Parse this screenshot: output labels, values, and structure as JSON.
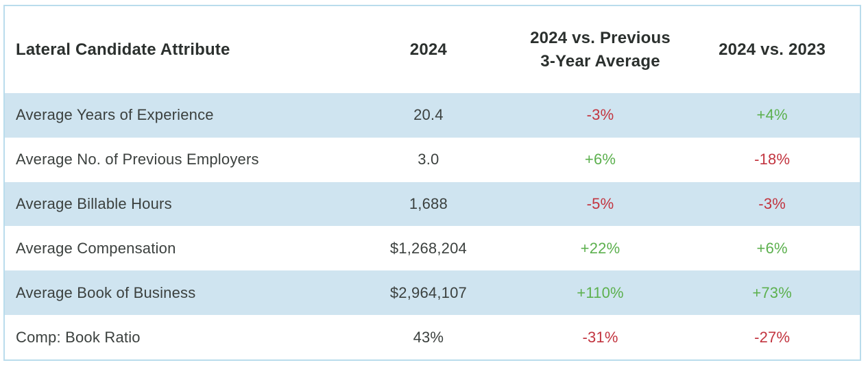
{
  "table": {
    "columns": [
      {
        "id": "attribute",
        "label": "Lateral Candidate Attribute"
      },
      {
        "id": "value_2024",
        "label": "2024"
      },
      {
        "id": "vs_prev_3yr",
        "label_line1": "2024 vs. Previous",
        "label_line2": "3-Year Average"
      },
      {
        "id": "vs_2023",
        "label": "2024 vs. 2023"
      }
    ],
    "rows": [
      {
        "attribute": "Average Years of Experience",
        "value_2024": "20.4",
        "vs_prev_3yr": "-3%",
        "vs_prev_3yr_trend": "negative",
        "vs_2023": "+4%",
        "vs_2023_trend": "positive"
      },
      {
        "attribute": "Average No. of Previous Employers",
        "value_2024": "3.0",
        "vs_prev_3yr": "+6%",
        "vs_prev_3yr_trend": "positive",
        "vs_2023": "-18%",
        "vs_2023_trend": "negative"
      },
      {
        "attribute": "Average Billable Hours",
        "value_2024": "1,688",
        "vs_prev_3yr": "-5%",
        "vs_prev_3yr_trend": "negative",
        "vs_2023": "-3%",
        "vs_2023_trend": "negative"
      },
      {
        "attribute": "Average Compensation",
        "value_2024": "$1,268,204",
        "vs_prev_3yr": "+22%",
        "vs_prev_3yr_trend": "positive",
        "vs_2023": "+6%",
        "vs_2023_trend": "positive"
      },
      {
        "attribute": "Average Book of Business",
        "value_2024": "$2,964,107",
        "vs_prev_3yr": "+110%",
        "vs_prev_3yr_trend": "positive",
        "vs_2023": "+73%",
        "vs_2023_trend": "positive"
      },
      {
        "attribute": "Comp: Book Ratio",
        "value_2024": "43%",
        "vs_prev_3yr": "-31%",
        "vs_prev_3yr_trend": "negative",
        "vs_2023": "-27%",
        "vs_2023_trend": "negative"
      }
    ]
  },
  "colors": {
    "positive_text": "#5cb04e",
    "negative_text": "#c2343f",
    "alt_row_background": "#cfe4f0",
    "table_border": "#b9dcec",
    "header_text": "#2b302e",
    "body_text": "#3b403e"
  },
  "chart_data": {
    "type": "table",
    "title": "",
    "columns": [
      "Lateral Candidate Attribute",
      "2024",
      "2024 vs. Previous 3-Year Average",
      "2024 vs. 2023"
    ],
    "rows": [
      [
        "Average Years of Experience",
        "20.4",
        "-3%",
        "+4%"
      ],
      [
        "Average No. of Previous Employers",
        "3.0",
        "+6%",
        "-18%"
      ],
      [
        "Average Billable Hours",
        "1,688",
        "-5%",
        "-3%"
      ],
      [
        "Average Compensation",
        "$1,268,204",
        "+22%",
        "+6%"
      ],
      [
        "Average Book of Business",
        "$2,964,107",
        "+110%",
        "+73%"
      ],
      [
        "Comp: Book Ratio",
        "43%",
        "-31%",
        "-27%"
      ]
    ],
    "layout_hints": {
      "positive_values_color": "#5cb04e",
      "negative_values_color": "#c2343f",
      "row_striping": "alternating light blue starting with first data row",
      "first_column_align": "left",
      "other_columns_align": "center"
    }
  }
}
